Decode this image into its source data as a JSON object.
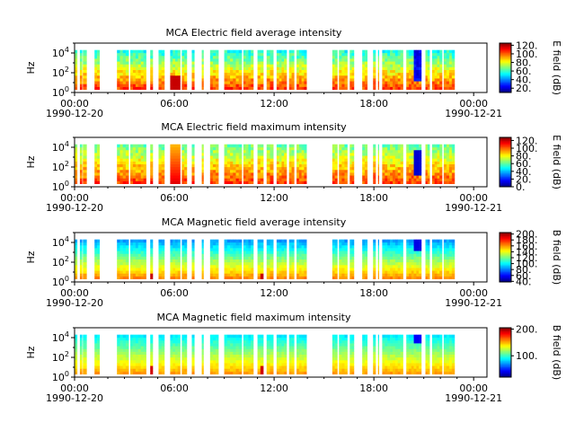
{
  "chart_data": [
    {
      "type": "heatmap",
      "title": "MCA  Electric field average intensity",
      "ylabel": "Hz",
      "y_scale": "log",
      "ylim": [
        1,
        100000
      ],
      "y_ticks": [
        {
          "v": 1,
          "b": "10",
          "e": "0"
        },
        {
          "v": 100,
          "b": "10",
          "e": "2"
        },
        {
          "v": 10000,
          "b": "10",
          "e": "4"
        }
      ],
      "x_ticks": [
        {
          "h": 0,
          "time": "00:00",
          "date": "1990-12-20"
        },
        {
          "h": 6,
          "time": "06:00",
          "date": ""
        },
        {
          "h": 12,
          "time": "12:00",
          "date": ""
        },
        {
          "h": 18,
          "time": "18:00",
          "date": ""
        },
        {
          "h": 24,
          "time": "00:00",
          "date": "1990-12-21"
        }
      ],
      "colorbar": {
        "label": "E field (dB)",
        "range": [
          10,
          125
        ],
        "ticks": [
          "20.",
          "40.",
          "60.",
          "80.",
          "100.",
          "120."
        ],
        "tick_values": [
          20,
          40,
          60,
          80,
          100,
          120
        ]
      },
      "style": "e_avg"
    },
    {
      "type": "heatmap",
      "title": "MCA  Electric field maximum intensity",
      "ylabel": "Hz",
      "y_scale": "log",
      "ylim": [
        1,
        100000
      ],
      "y_ticks": [
        {
          "v": 1,
          "b": "10",
          "e": "0"
        },
        {
          "v": 100,
          "b": "10",
          "e": "2"
        },
        {
          "v": 10000,
          "b": "10",
          "e": "4"
        }
      ],
      "x_ticks": [
        {
          "h": 0,
          "time": "00:00",
          "date": "1990-12-20"
        },
        {
          "h": 6,
          "time": "06:00",
          "date": ""
        },
        {
          "h": 12,
          "time": "12:00",
          "date": ""
        },
        {
          "h": 18,
          "time": "18:00",
          "date": ""
        },
        {
          "h": 24,
          "time": "00:00",
          "date": "1990-12-21"
        }
      ],
      "colorbar": {
        "label": "E field (dB)",
        "range": [
          0,
          128
        ],
        "ticks": [
          "0.",
          "20.",
          "40.",
          "60.",
          "80.",
          "100.",
          "120."
        ],
        "tick_values": [
          0,
          20,
          40,
          60,
          80,
          100,
          120
        ]
      },
      "style": "e_max"
    },
    {
      "type": "heatmap",
      "title": "MCA  Magnetic field average intensity",
      "ylabel": "Hz",
      "y_scale": "log",
      "ylim": [
        1,
        100000
      ],
      "y_ticks": [
        {
          "v": 1,
          "b": "10",
          "e": "0"
        },
        {
          "v": 100,
          "b": "10",
          "e": "2"
        },
        {
          "v": 10000,
          "b": "10",
          "e": "4"
        }
      ],
      "x_ticks": [
        {
          "h": 0,
          "time": "00:00",
          "date": "1990-12-20"
        },
        {
          "h": 6,
          "time": "06:00",
          "date": ""
        },
        {
          "h": 12,
          "time": "12:00",
          "date": ""
        },
        {
          "h": 18,
          "time": "18:00",
          "date": ""
        },
        {
          "h": 24,
          "time": "00:00",
          "date": "1990-12-21"
        }
      ],
      "colorbar": {
        "label": "B field (dB)",
        "range": [
          38,
          205
        ],
        "ticks": [
          "40.",
          "60.",
          "80.",
          "100.",
          "120.",
          "140.",
          "160.",
          "180.",
          "200."
        ],
        "tick_values": [
          40,
          60,
          80,
          100,
          120,
          140,
          160,
          180,
          200
        ]
      },
      "style": "b_avg"
    },
    {
      "type": "heatmap",
      "title": "MCA  Magnetic field maximum intensity",
      "ylabel": "Hz",
      "y_scale": "log",
      "ylim": [
        1,
        100000
      ],
      "y_ticks": [
        {
          "v": 1,
          "b": "10",
          "e": "0"
        },
        {
          "v": 100,
          "b": "10",
          "e": "2"
        },
        {
          "v": 10000,
          "b": "10",
          "e": "4"
        }
      ],
      "x_ticks": [
        {
          "h": 0,
          "time": "00:00",
          "date": "1990-12-20"
        },
        {
          "h": 6,
          "time": "06:00",
          "date": ""
        },
        {
          "h": 12,
          "time": "12:00",
          "date": ""
        },
        {
          "h": 18,
          "time": "18:00",
          "date": ""
        },
        {
          "h": 24,
          "time": "00:00",
          "date": "1990-12-21"
        }
      ],
      "colorbar": {
        "label": "B field (dB)",
        "range": [
          20,
          205
        ],
        "ticks": [
          "100.",
          "200."
        ],
        "tick_values": [
          100,
          200
        ]
      },
      "style": "b_max"
    }
  ],
  "data_segments_hours": [
    [
      0.0,
      0.15
    ],
    [
      0.32,
      0.45
    ],
    [
      0.5,
      0.72
    ],
    [
      1.2,
      1.5
    ],
    [
      2.55,
      3.25
    ],
    [
      3.35,
      4.3
    ],
    [
      4.55,
      4.7
    ],
    [
      5.05,
      5.4
    ],
    [
      5.75,
      6.35
    ],
    [
      6.45,
      6.75
    ],
    [
      7.05,
      7.2
    ],
    [
      7.65,
      7.75
    ],
    [
      8.15,
      8.65
    ],
    [
      9.0,
      10.05
    ],
    [
      10.15,
      10.75
    ],
    [
      11.0,
      11.35
    ],
    [
      11.55,
      11.95
    ],
    [
      12.15,
      12.75
    ],
    [
      12.9,
      13.2
    ],
    [
      13.35,
      13.95
    ],
    [
      15.5,
      15.8
    ],
    [
      15.9,
      16.4
    ],
    [
      16.55,
      16.8
    ],
    [
      17.3,
      17.6
    ],
    [
      17.95,
      18.1
    ],
    [
      18.25,
      18.3
    ],
    [
      18.5,
      19.75
    ],
    [
      19.95,
      20.85
    ],
    [
      21.1,
      21.35
    ],
    [
      21.5,
      22.1
    ],
    [
      22.2,
      22.85
    ]
  ]
}
